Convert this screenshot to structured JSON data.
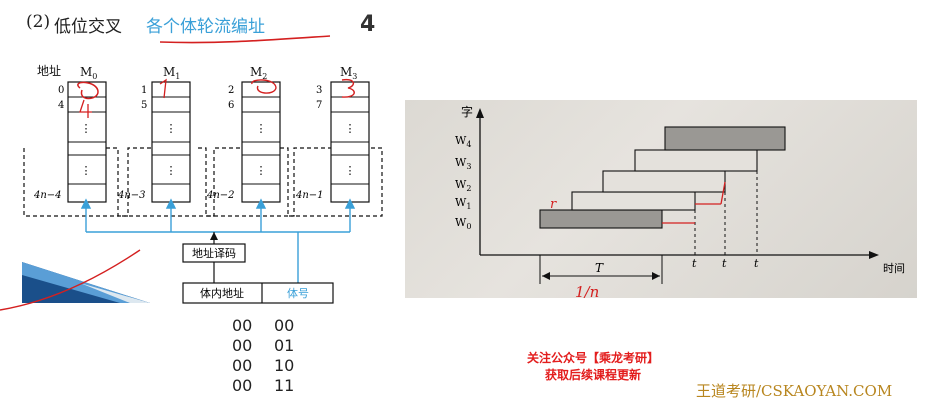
{
  "header": {
    "number": "(2)",
    "title": "低位交叉",
    "subtitle": "各个体轮流编址",
    "page_number": "4"
  },
  "memory_diagram": {
    "address_label": "地址",
    "modules": [
      {
        "name": "M",
        "sub": "0",
        "addrs": [
          "0",
          "4"
        ],
        "last": "4n−4"
      },
      {
        "name": "M",
        "sub": "1",
        "addrs": [
          "1",
          "5"
        ],
        "last": "4n−3"
      },
      {
        "name": "M",
        "sub": "2",
        "addrs": [
          "2",
          "6"
        ],
        "last": "4n−2"
      },
      {
        "name": "M",
        "sub": "3",
        "addrs": [
          "3",
          "7"
        ],
        "last": "4n−1"
      }
    ],
    "decoder_label": "地址译码",
    "inner_address_label": "体内地址",
    "module_number_label": "体号"
  },
  "codes": [
    [
      "00",
      "00"
    ],
    [
      "00",
      "01"
    ],
    [
      "00",
      "10"
    ],
    [
      "00",
      "11"
    ]
  ],
  "timing": {
    "y_label": "字",
    "x_label": "时间",
    "rows": [
      "W",
      "W",
      "W",
      "W",
      "W"
    ],
    "row_subs": [
      "4",
      "3",
      "2",
      "1",
      "0"
    ],
    "t_labels": [
      "t",
      "t",
      "t"
    ],
    "period_label": "T",
    "handwriting_period": "1/n",
    "handwriting_mark": "r"
  },
  "promo": {
    "line1": "关注公众号【乘龙考研】",
    "line2": "获取后续课程更新"
  },
  "watermark": "王道考研/CSKAOYAN.COM",
  "colors": {
    "accent_blue": "#3aa0d8",
    "promo_red": "#e31d1d",
    "pen_red": "#d42020",
    "watermark_gold": "#b8861f"
  }
}
